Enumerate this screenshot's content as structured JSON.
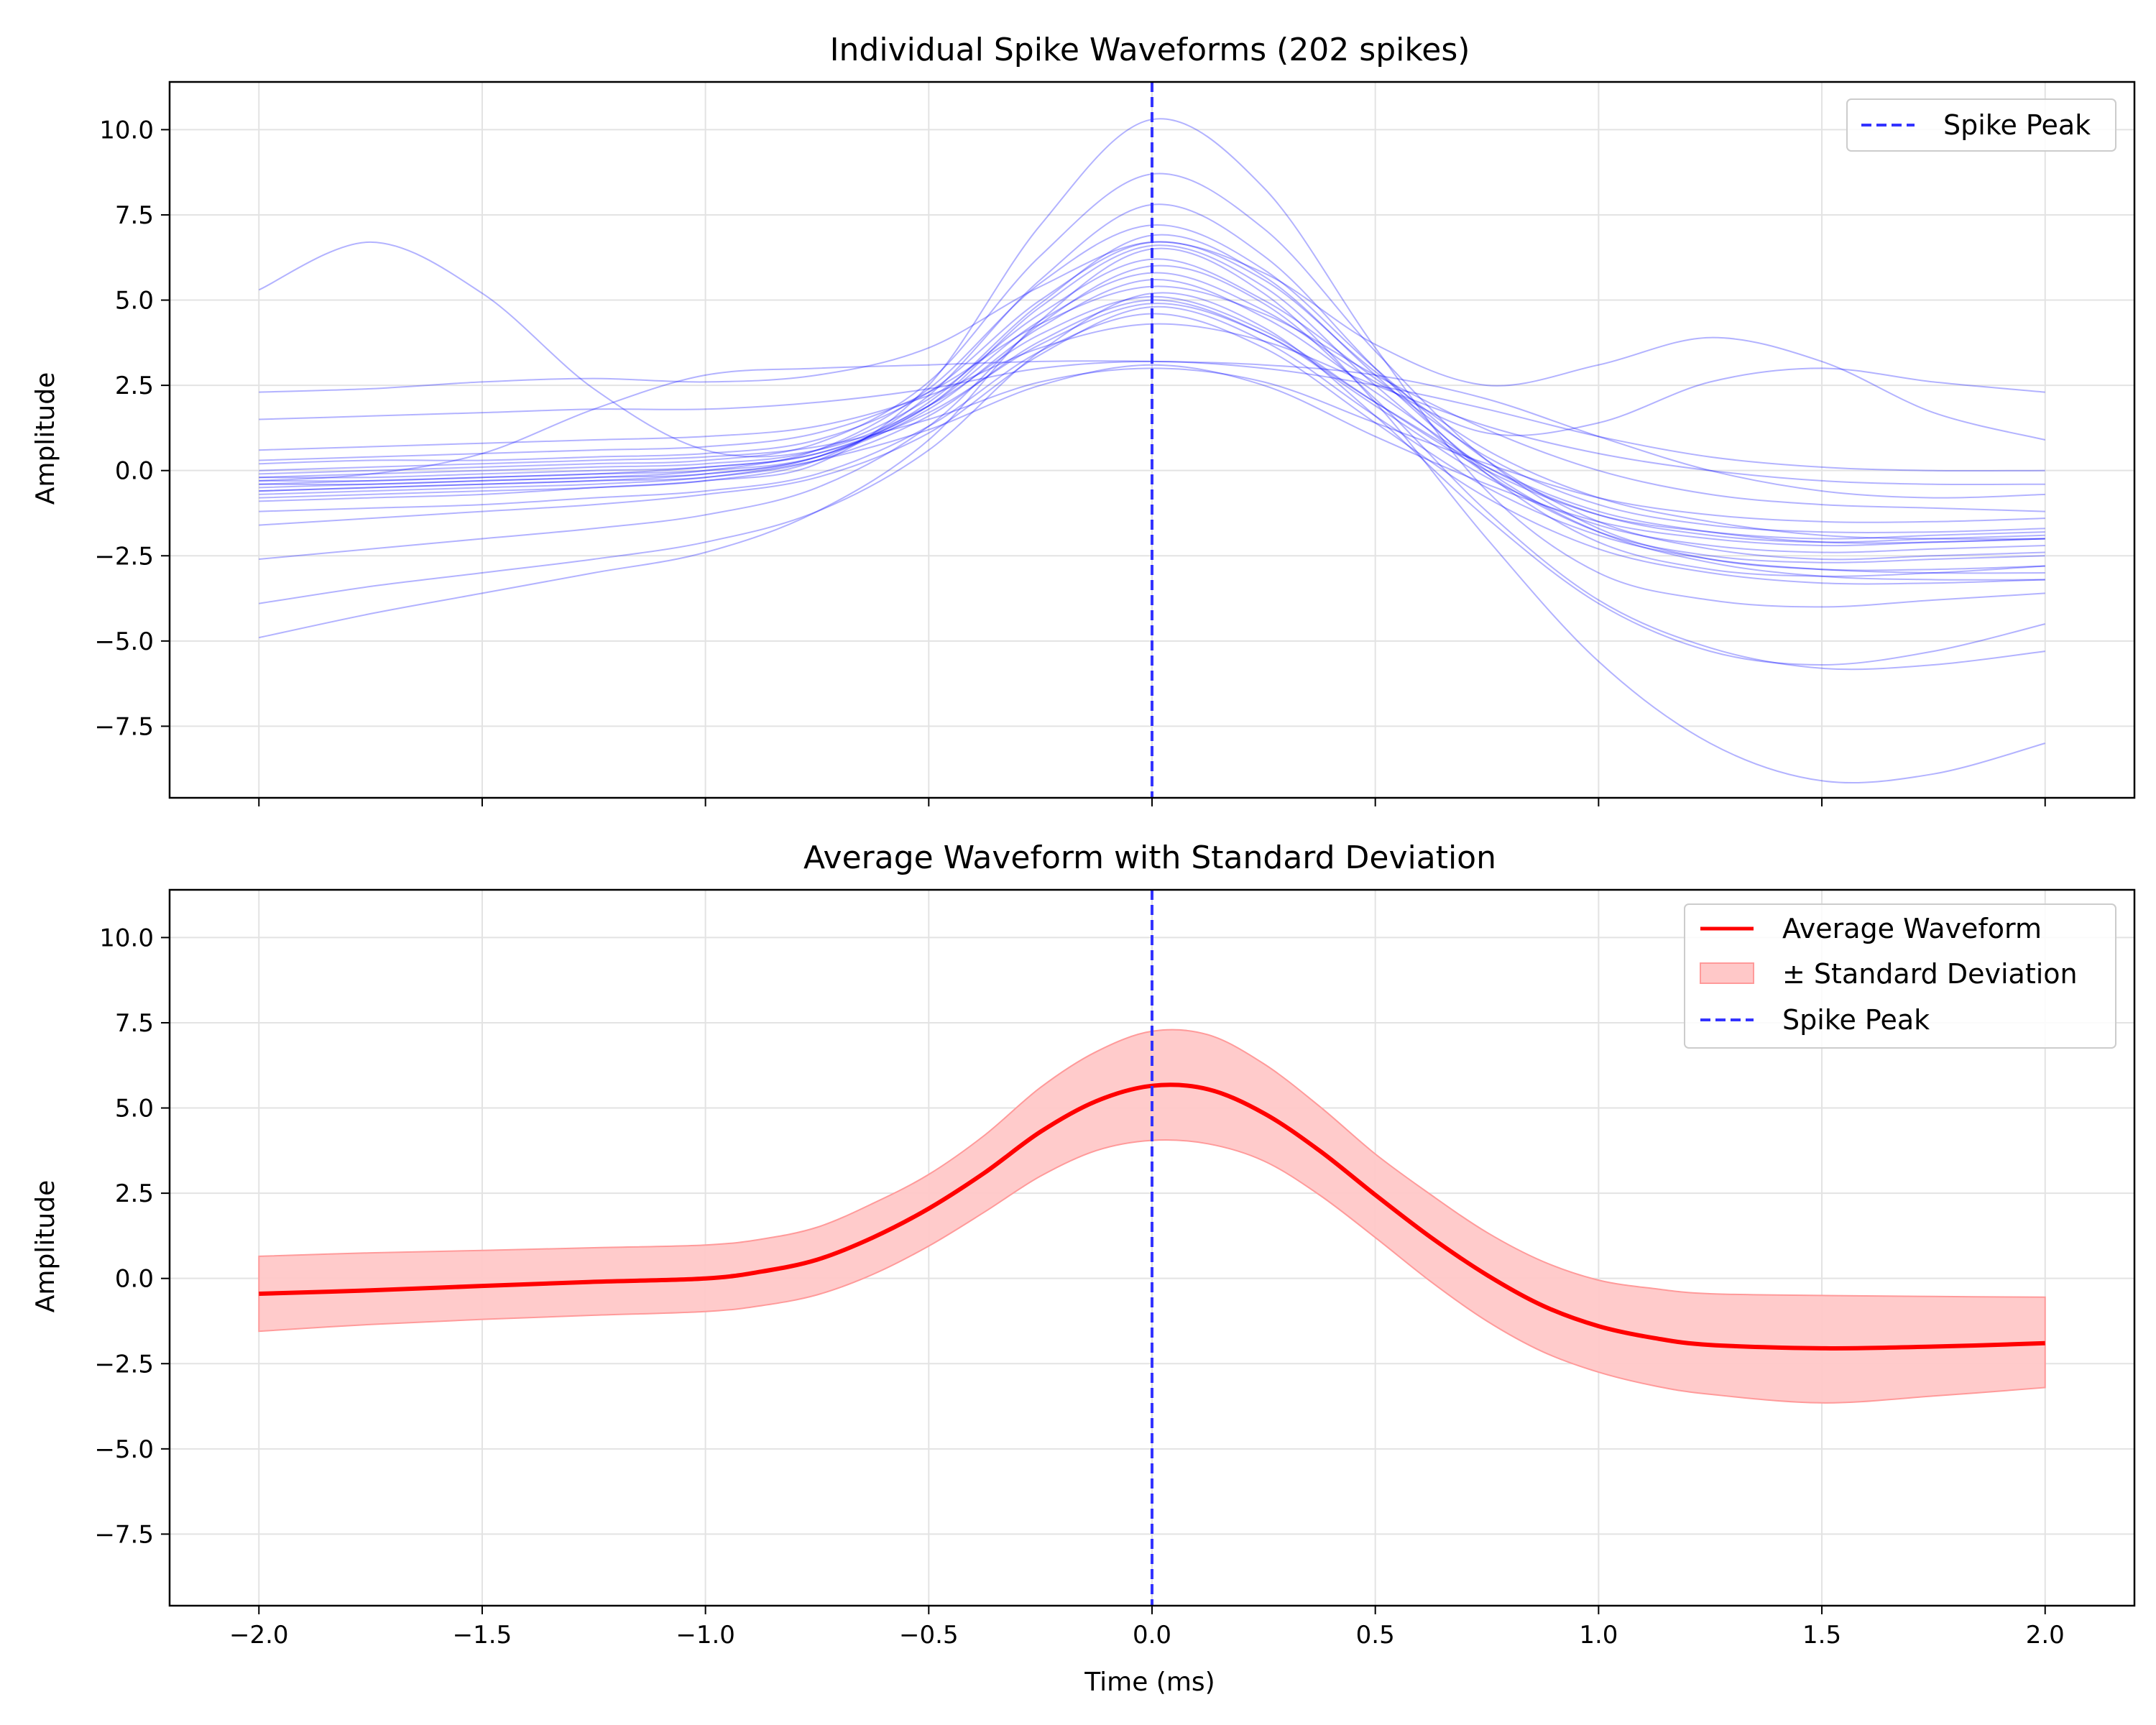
{
  "chart_data": [
    {
      "type": "line",
      "title": "Individual Spike Waveforms (202 spikes)",
      "xlabel": "",
      "ylabel": "Amplitude",
      "xlim": [
        -2.2,
        2.2
      ],
      "ylim": [
        -9.6,
        11.4
      ],
      "xticks": [
        -2.0,
        -1.5,
        -1.0,
        -0.5,
        0.0,
        0.5,
        1.0,
        1.5,
        2.0
      ],
      "xtick_labels_visible": false,
      "yticks": [
        -7.5,
        -5.0,
        -2.5,
        0.0,
        2.5,
        5.0,
        7.5,
        10.0
      ],
      "ytick_labels": [
        "−7.5",
        "−5.0",
        "−2.5",
        "0.0",
        "2.5",
        "5.0",
        "7.5",
        "10.0"
      ],
      "grid": true,
      "legend": {
        "location": "top-right",
        "entries": [
          "Spike Peak"
        ]
      },
      "spike_count": 202,
      "waveform_color": "#0000ff",
      "waveform_alpha": 0.2,
      "peak_line": {
        "x": 0.0,
        "color": "#3333ff",
        "style": "dashed",
        "label": "Spike Peak"
      },
      "x": [
        -2.0,
        -1.75,
        -1.5,
        -1.25,
        -1.0,
        -0.75,
        -0.5,
        -0.25,
        0.0,
        0.25,
        0.5,
        0.75,
        1.0,
        1.25,
        1.5,
        1.75,
        2.0
      ],
      "series": [
        {
          "values": [
            -0.4,
            -0.3,
            -0.2,
            -0.1,
            0.0,
            0.4,
            1.8,
            4.2,
            5.6,
            4.5,
            2.3,
            0.1,
            -1.3,
            -1.9,
            -2.1,
            -2.0,
            -1.9
          ]
        },
        {
          "values": [
            -0.6,
            -0.5,
            -0.4,
            -0.3,
            -0.2,
            0.3,
            1.6,
            3.8,
            5.0,
            4.0,
            1.9,
            -0.2,
            -1.6,
            -2.2,
            -2.4,
            -2.3,
            -2.2
          ]
        },
        {
          "values": [
            -0.2,
            -0.1,
            0.0,
            0.1,
            0.2,
            0.6,
            2.1,
            4.6,
            6.2,
            5.0,
            2.7,
            0.4,
            -1.0,
            -1.6,
            -1.8,
            -1.8,
            -1.7
          ]
        },
        {
          "values": [
            0.3,
            0.4,
            0.5,
            0.6,
            0.7,
            1.1,
            2.3,
            4.3,
            5.4,
            4.6,
            2.8,
            1.2,
            0.0,
            -0.7,
            -1.0,
            -1.1,
            -1.2
          ]
        },
        {
          "values": [
            -1.2,
            -1.1,
            -1.0,
            -0.8,
            -0.6,
            -0.1,
            1.3,
            3.5,
            4.6,
            3.6,
            1.4,
            -0.8,
            -2.3,
            -3.0,
            -3.3,
            -3.3,
            -3.2
          ]
        },
        {
          "values": [
            -0.5,
            -0.4,
            -0.3,
            -0.2,
            0.0,
            0.6,
            2.4,
            5.5,
            7.2,
            5.9,
            3.0,
            0.3,
            -1.5,
            -2.3,
            -2.6,
            -2.5,
            -2.4
          ]
        },
        {
          "values": [
            0.0,
            0.1,
            0.2,
            0.3,
            0.4,
            0.7,
            1.5,
            2.6,
            3.0,
            2.6,
            1.4,
            0.2,
            -0.8,
            -1.3,
            -1.5,
            -1.5,
            -1.4
          ]
        },
        {
          "values": [
            -0.8,
            -0.7,
            -0.6,
            -0.5,
            -0.3,
            0.3,
            2.2,
            5.6,
            7.8,
            6.3,
            3.0,
            -0.1,
            -2.1,
            -2.9,
            -3.1,
            -3.0,
            -2.8
          ]
        },
        {
          "values": [
            0.6,
            0.7,
            0.8,
            0.9,
            1.0,
            1.3,
            2.2,
            3.6,
            4.3,
            3.8,
            2.5,
            1.3,
            0.5,
            0.0,
            -0.3,
            -0.4,
            -0.4
          ]
        },
        {
          "values": [
            -0.3,
            -0.3,
            -0.2,
            -0.1,
            0.1,
            0.5,
            1.9,
            4.8,
            6.6,
            5.4,
            2.5,
            -0.1,
            -1.8,
            -2.5,
            -2.7,
            -2.6,
            -2.5
          ]
        },
        {
          "values": [
            -0.9,
            -0.8,
            -0.7,
            -0.5,
            -0.3,
            0.2,
            2.5,
            7.2,
            10.3,
            8.3,
            3.6,
            -0.6,
            -3.0,
            -3.8,
            -4.0,
            -3.8,
            -3.6
          ]
        },
        {
          "values": [
            -0.1,
            0.0,
            0.1,
            0.2,
            0.3,
            0.8,
            2.6,
            6.3,
            8.7,
            7.1,
            3.5,
            0.3,
            -1.7,
            -2.6,
            -2.9,
            -2.9,
            -2.8
          ]
        },
        {
          "values": [
            -0.7,
            -0.6,
            -0.5,
            -0.4,
            -0.2,
            0.3,
            1.2,
            2.5,
            3.1,
            2.5,
            1.0,
            -0.4,
            -1.5,
            -2.0,
            -2.2,
            -2.1,
            -2.0
          ]
        },
        {
          "values": [
            1.5,
            1.6,
            1.7,
            1.8,
            1.8,
            2.0,
            2.4,
            3.0,
            3.2,
            3.0,
            2.5,
            1.8,
            1.0,
            0.4,
            0.1,
            0.0,
            0.0
          ]
        },
        {
          "values": [
            -1.6,
            -1.4,
            -1.2,
            -1.0,
            -0.7,
            -0.2,
            1.1,
            3.4,
            4.8,
            3.8,
            1.6,
            -0.5,
            -1.9,
            -2.6,
            -2.9,
            -3.0,
            -3.0
          ]
        },
        {
          "values": [
            0.2,
            0.3,
            0.3,
            0.4,
            0.5,
            0.9,
            2.3,
            5.0,
            6.7,
            5.6,
            2.9,
            0.6,
            -0.8,
            -1.5,
            -1.9,
            -2.0,
            -2.0
          ]
        },
        {
          "values": [
            -0.4,
            -0.4,
            -0.3,
            -0.2,
            -0.1,
            0.4,
            2.0,
            4.9,
            6.9,
            5.7,
            2.8,
            0.0,
            -1.8,
            -2.7,
            -3.1,
            -3.2,
            -3.2
          ]
        },
        {
          "values": [
            -0.2,
            -0.2,
            -0.1,
            0.0,
            0.1,
            0.5,
            1.7,
            3.7,
            4.9,
            4.0,
            2.0,
            0.1,
            -1.2,
            -1.8,
            -2.1,
            -2.1,
            -2.0
          ]
        },
        {
          "values": [
            5.3,
            6.7,
            5.2,
            2.4,
            0.6,
            0.6,
            1.9,
            4.0,
            5.1,
            4.1,
            2.0,
            0.0,
            -1.3,
            -1.8,
            -2.0,
            -1.9,
            -1.8
          ]
        },
        {
          "values": [
            -4.9,
            -4.2,
            -3.6,
            -3.0,
            -2.4,
            -1.2,
            0.9,
            4.4,
            6.5,
            5.2,
            2.0,
            -2.0,
            -5.6,
            -8.0,
            -9.1,
            -8.9,
            -8.0
          ]
        },
        {
          "values": [
            -2.6,
            -2.3,
            -2.0,
            -1.7,
            -1.3,
            -0.5,
            1.3,
            4.3,
            6.0,
            4.9,
            2.1,
            -1.2,
            -3.8,
            -5.2,
            -5.8,
            -5.7,
            -5.3
          ]
        },
        {
          "values": [
            -0.3,
            -0.1,
            0.5,
            1.8,
            2.8,
            3.0,
            3.1,
            3.2,
            3.2,
            3.1,
            2.8,
            2.1,
            1.0,
            0.0,
            -0.6,
            -0.8,
            -0.7
          ]
        },
        {
          "values": [
            2.3,
            2.4,
            2.6,
            2.7,
            2.6,
            2.8,
            3.6,
            5.4,
            6.7,
            5.8,
            3.7,
            2.5,
            3.1,
            3.9,
            3.2,
            1.7,
            0.9
          ]
        },
        {
          "values": [
            -3.9,
            -3.4,
            -3.0,
            -2.6,
            -2.1,
            -1.2,
            0.6,
            3.5,
            5.2,
            4.2,
            1.6,
            -1.4,
            -3.9,
            -5.3,
            -5.7,
            -5.3,
            -4.5
          ]
        },
        {
          "values": [
            -0.6,
            -0.5,
            -0.4,
            -0.3,
            -0.1,
            0.4,
            1.9,
            4.4,
            5.8,
            4.7,
            2.6,
            1.1,
            1.4,
            2.6,
            3.0,
            2.6,
            2.3
          ]
        }
      ]
    },
    {
      "type": "area",
      "title": "Average Waveform with Standard Deviation",
      "xlabel": "Time (ms)",
      "ylabel": "Amplitude",
      "xlim": [
        -2.2,
        2.2
      ],
      "ylim": [
        -9.6,
        11.4
      ],
      "xticks": [
        -2.0,
        -1.5,
        -1.0,
        -0.5,
        0.0,
        0.5,
        1.0,
        1.5,
        2.0
      ],
      "xtick_labels": [
        "−2.0",
        "−1.5",
        "−1.0",
        "−0.5",
        "0.0",
        "0.5",
        "1.0",
        "1.5",
        "2.0"
      ],
      "yticks": [
        -7.5,
        -5.0,
        -2.5,
        0.0,
        2.5,
        5.0,
        7.5,
        10.0
      ],
      "ytick_labels": [
        "−7.5",
        "−5.0",
        "−2.5",
        "0.0",
        "2.5",
        "5.0",
        "7.5",
        "10.0"
      ],
      "grid": true,
      "legend": {
        "location": "top-right",
        "entries": [
          "Average Waveform",
          "± Standard Deviation",
          "Spike Peak"
        ]
      },
      "mean_color": "#ff0000",
      "band_color": "#ffc8c8",
      "peak_line": {
        "x": 0.0,
        "color": "#3333ff",
        "style": "dashed",
        "label": "Spike Peak"
      },
      "x": [
        -2.0,
        -1.75,
        -1.5,
        -1.25,
        -1.0,
        -0.875,
        -0.75,
        -0.625,
        -0.5,
        -0.375,
        -0.25,
        -0.125,
        0.0,
        0.125,
        0.25,
        0.375,
        0.5,
        0.625,
        0.75,
        0.875,
        1.0,
        1.125,
        1.25,
        1.5,
        1.75,
        2.0
      ],
      "series": [
        {
          "name": "Average Waveform",
          "values": [
            -0.45,
            -0.35,
            -0.22,
            -0.1,
            0.0,
            0.2,
            0.55,
            1.2,
            2.05,
            3.1,
            4.3,
            5.2,
            5.65,
            5.55,
            4.85,
            3.75,
            2.45,
            1.2,
            0.1,
            -0.8,
            -1.4,
            -1.75,
            -1.95,
            -2.05,
            -2.0,
            -1.9
          ]
        },
        {
          "name": "± Standard Deviation",
          "lower": [
            -1.55,
            -1.35,
            -1.2,
            -1.08,
            -0.97,
            -0.8,
            -0.48,
            0.12,
            0.95,
            1.95,
            3.0,
            3.75,
            4.05,
            3.95,
            3.45,
            2.45,
            1.2,
            -0.1,
            -1.25,
            -2.15,
            -2.75,
            -3.15,
            -3.4,
            -3.65,
            -3.45,
            -3.2
          ],
          "upper": [
            0.65,
            0.75,
            0.82,
            0.9,
            0.98,
            1.15,
            1.5,
            2.2,
            3.05,
            4.2,
            5.6,
            6.65,
            7.25,
            7.15,
            6.3,
            5.05,
            3.65,
            2.45,
            1.35,
            0.5,
            -0.05,
            -0.3,
            -0.45,
            -0.5,
            -0.53,
            -0.55
          ]
        }
      ]
    }
  ]
}
